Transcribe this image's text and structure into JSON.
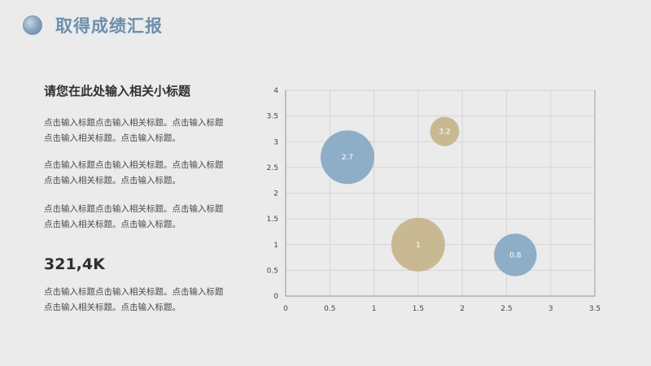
{
  "header": {
    "title": "取得成绩汇报",
    "icon": "globe-icon"
  },
  "left": {
    "subtitle": "请您在此处输入相关小标题",
    "paragraphs": [
      "点击输入标题点击输入相关标题。点击输入标题\n点击输入相关标题。点击输入标题。",
      "点击输入标题点击输入相关标题。点击输入标题\n点击输入相关标题。点击输入标题。",
      "点击输入标题点击输入相关标题。点击输入标题\n点击输入相关标题。点击输入标题。"
    ],
    "big_number": "321,4K",
    "bottom_paragraph": "点击输入标题点击输入相关标题。点击输入标题\n点击输入相关标题。点击输入标题。"
  },
  "colors": {
    "blue": "#7ea3c2",
    "gold": "#c2b083",
    "title": "#6c8fae"
  },
  "chart_data": {
    "type": "scatter",
    "subtype": "bubble",
    "xlim": [
      0,
      3.5
    ],
    "ylim": [
      0,
      4
    ],
    "x_ticks": [
      "0",
      "0.5",
      "1",
      "1.5",
      "2",
      "2.5",
      "3",
      "3.5"
    ],
    "y_ticks": [
      "0",
      "0.5",
      "1",
      "1.5",
      "2",
      "2.5",
      "3",
      "3.5",
      "4"
    ],
    "grid": true,
    "points": [
      {
        "x": 0.7,
        "y": 2.7,
        "size": 2.7,
        "label": "2.7",
        "color": "#7ea3c2"
      },
      {
        "x": 1.8,
        "y": 3.2,
        "size": 0.8,
        "label": "3.2",
        "color": "#c2b083"
      },
      {
        "x": 1.5,
        "y": 1.0,
        "size": 2.7,
        "label": "1",
        "color": "#c2b083"
      },
      {
        "x": 2.6,
        "y": 0.8,
        "size": 1.7,
        "label": "0.8",
        "color": "#7ea3c2"
      }
    ]
  }
}
